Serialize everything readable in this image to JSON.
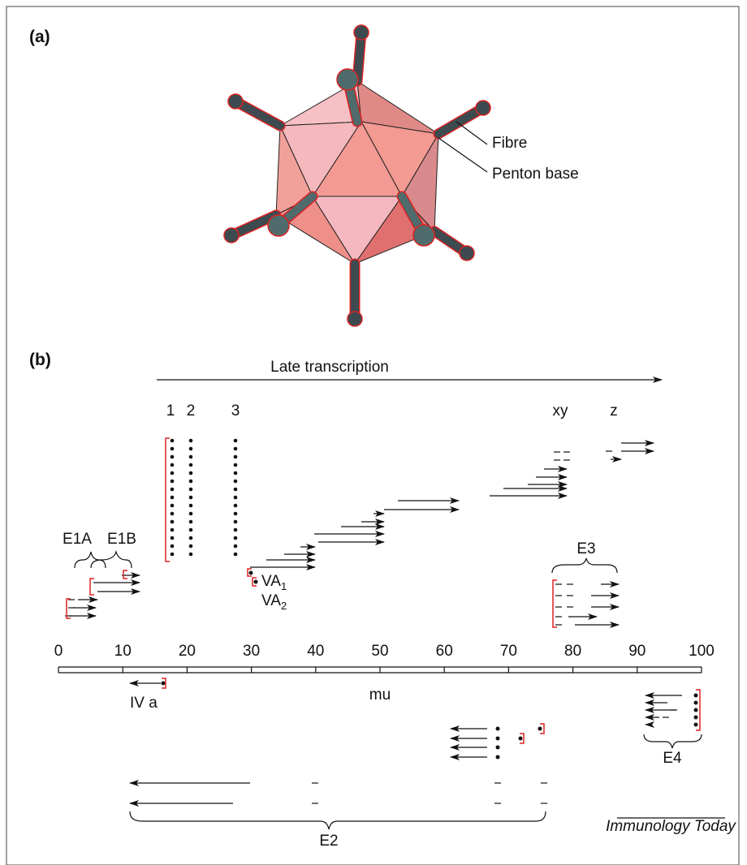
{
  "panel_a": {
    "label": "(a)",
    "fibre": "Fibre",
    "penton_base": "Penton base"
  },
  "panel_b": {
    "label": "(b)",
    "late_transcription": "Late transcription",
    "leader_labels": [
      "1",
      "2",
      "3",
      "xy",
      "z"
    ],
    "regions": {
      "e1a": "E1A",
      "e1b": "E1B",
      "va1": {
        "main": "VA",
        "sub": "1"
      },
      "va2": {
        "main": "VA",
        "sub": "2"
      },
      "e3": "E3",
      "iva": "IV a",
      "e4": "E4",
      "e2": "E2"
    },
    "axis": {
      "ticks": [
        0,
        10,
        20,
        30,
        40,
        50,
        60,
        70,
        80,
        90,
        100
      ],
      "label": "mu"
    }
  },
  "source": "Immunology Today"
}
